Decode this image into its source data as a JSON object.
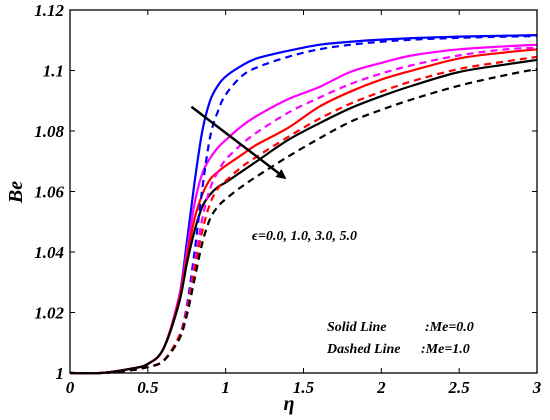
{
  "chart_data": {
    "type": "line",
    "xlabel": "η",
    "ylabel": "Be",
    "xlim": [
      0,
      3
    ],
    "ylim": [
      1,
      1.12
    ],
    "xticks": [
      "0",
      "0.5",
      "1",
      "1.5",
      "2",
      "2.5",
      "3"
    ],
    "yticks": [
      "1",
      "1.02",
      "1.04",
      "1.06",
      "1.08",
      "1.1",
      "1.12"
    ],
    "grid": false,
    "x": [
      0,
      0.2,
      0.4,
      0.5,
      0.6,
      0.7,
      0.75,
      0.8,
      0.85,
      0.9,
      0.95,
      1.0,
      1.1,
      1.2,
      1.4,
      1.6,
      1.8,
      2.0,
      2.2,
      2.5,
      2.8,
      3.0
    ],
    "series": [
      {
        "color": "#0000ff",
        "style": "solid",
        "values": [
          1.0,
          1.0,
          1.0015,
          1.003,
          1.008,
          1.025,
          1.043,
          1.063,
          1.08,
          1.09,
          1.095,
          1.098,
          1.1015,
          1.104,
          1.1065,
          1.1085,
          1.1095,
          1.1102,
          1.1107,
          1.1112,
          1.1115,
          1.1117
        ]
      },
      {
        "color": "#ff00ff",
        "style": "solid",
        "values": [
          1.0,
          1.0,
          1.0015,
          1.003,
          1.008,
          1.025,
          1.04,
          1.056,
          1.066,
          1.071,
          1.0745,
          1.077,
          1.0815,
          1.085,
          1.0905,
          1.0945,
          1.0995,
          1.1025,
          1.105,
          1.107,
          1.108,
          1.1085
        ]
      },
      {
        "color": "#ff0000",
        "style": "solid",
        "values": [
          1.0,
          1.0,
          1.0015,
          1.003,
          1.008,
          1.024,
          1.038,
          1.051,
          1.059,
          1.064,
          1.0665,
          1.0685,
          1.072,
          1.0755,
          1.081,
          1.088,
          1.093,
          1.097,
          1.1,
          1.104,
          1.106,
          1.107
        ]
      },
      {
        "color": "#000000",
        "style": "solid",
        "values": [
          1.0,
          1.0,
          1.0015,
          1.003,
          1.008,
          1.023,
          1.036,
          1.047,
          1.055,
          1.059,
          1.0615,
          1.063,
          1.0665,
          1.07,
          1.077,
          1.0825,
          1.0875,
          1.0915,
          1.095,
          1.0995,
          1.102,
          1.1035
        ]
      },
      {
        "color": "#0000ff",
        "style": "dashed",
        "values": [
          1.0,
          1.0,
          1.001,
          1.002,
          1.004,
          1.012,
          1.022,
          1.04,
          1.061,
          1.078,
          1.0865,
          1.092,
          1.098,
          1.101,
          1.1045,
          1.107,
          1.1085,
          1.1095,
          1.1102,
          1.1108,
          1.1112,
          1.1114
        ]
      },
      {
        "color": "#ff00ff",
        "style": "dashed",
        "values": [
          1.0,
          1.0,
          1.001,
          1.002,
          1.004,
          1.012,
          1.021,
          1.036,
          1.051,
          1.061,
          1.0665,
          1.0705,
          1.0755,
          1.0795,
          1.086,
          1.091,
          1.0955,
          1.099,
          1.1018,
          1.105,
          1.107,
          1.1075
        ]
      },
      {
        "color": "#ff0000",
        "style": "dashed",
        "values": [
          1.0,
          1.0,
          1.001,
          1.002,
          1.004,
          1.012,
          1.02,
          1.034,
          1.047,
          1.056,
          1.061,
          1.0635,
          1.068,
          1.0715,
          1.078,
          1.084,
          1.089,
          1.093,
          1.0965,
          1.1005,
          1.103,
          1.1045
        ]
      },
      {
        "color": "#000000",
        "style": "dashed",
        "values": [
          1.0,
          1.0,
          1.001,
          1.002,
          1.004,
          1.011,
          1.019,
          1.031,
          1.043,
          1.051,
          1.055,
          1.0575,
          1.0615,
          1.065,
          1.0715,
          1.0775,
          1.083,
          1.087,
          1.0905,
          1.095,
          1.0985,
          1.1005
        ]
      }
    ],
    "annotations": {
      "parameter_label": "ϵ=0.0, 1.0, 3.0, 5.0",
      "arrow": {
        "from": [
          0.78,
          1.088
        ],
        "to": [
          1.38,
          1.0645
        ]
      },
      "legend_solid_label": "Solid Line",
      "legend_solid_value": ":Me=0.0",
      "legend_dashed_label": "Dashed Line",
      "legend_dashed_value": ":Me=1.0"
    }
  }
}
